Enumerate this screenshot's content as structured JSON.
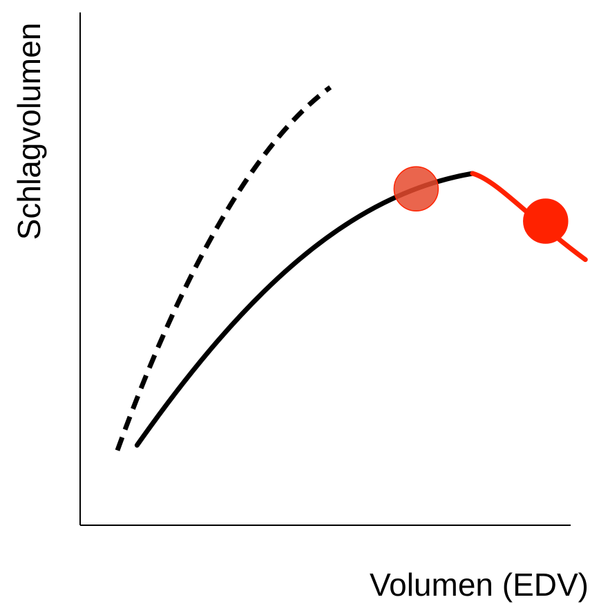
{
  "chart_data": {
    "type": "line",
    "title": "",
    "xlabel": "Volumen (EDV)",
    "ylabel": "Schlagvolumen",
    "xlim": [
      0,
      100
    ],
    "ylim": [
      0,
      100
    ],
    "x_ticks": [],
    "y_ticks": [],
    "grid": false,
    "legend": "none",
    "series": [
      {
        "line_style": "dashed",
        "color": "#000000",
        "points": [
          [
            7.6,
            14.6
          ],
          [
            21,
            50
          ],
          [
            36,
            75
          ],
          [
            51,
            85.4
          ]
        ]
      },
      {
        "line_style": "solid",
        "color": "#000000",
        "points": [
          [
            11.6,
            15.6
          ],
          [
            34,
            46
          ],
          [
            55,
            64.5
          ],
          [
            80,
            68.6
          ]
        ]
      },
      {
        "line_style": "solid",
        "color": "#ff2200",
        "points": [
          [
            80,
            68.6
          ],
          [
            85,
            67.3
          ],
          [
            92,
            59.5
          ],
          [
            103,
            51.8
          ]
        ]
      }
    ],
    "markers": [
      {
        "x": 68.5,
        "y": 65.6,
        "color": "#e64a2e",
        "opacity": 0.85
      },
      {
        "x": 94.9,
        "y": 59.3,
        "color": "#ff2200",
        "opacity": 1
      }
    ]
  }
}
